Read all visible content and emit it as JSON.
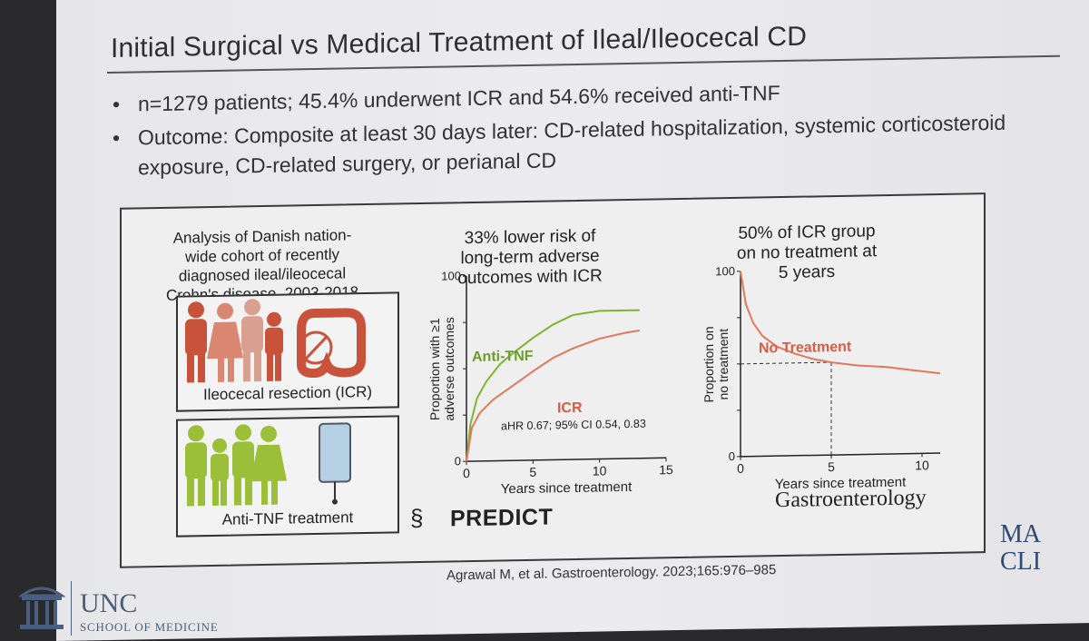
{
  "title": "Initial Surgical vs Medical Treatment of Ileal/Ileocecal CD",
  "bullets": [
    "n=1279 patients; 45.4% underwent ICR and 54.6% received anti-TNF",
    "Outcome: Composite at least 30 days later: CD-related hospitalization, systemic corticosteroid exposure, CD-related surgery, or perianal CD"
  ],
  "cohort_text": [
    "Analysis of Danish nation-",
    "wide cohort of recently",
    "diagnosed ileal/ileocecal",
    "Crohn's disease, 2003-2018"
  ],
  "icr_panel_label": "Ileocecal resection (ICR)",
  "antitnf_panel_label": "Anti-TNF treatment",
  "chart1_title": [
    "33% lower risk of",
    "long-term adverse",
    "outcomes with ICR"
  ],
  "chart2_title": [
    "50% of ICR group",
    "on no treatment at",
    "5 years"
  ],
  "predict_label": "PREDICT",
  "journal": "Gastroenterology",
  "citation": "Agrawal M, et al. Gastroenterology. 2023;165:976–985",
  "unc": {
    "name": "UNC",
    "sub": "SCHOOL OF MEDICINE"
  },
  "mayo": [
    "MA",
    "CLI"
  ],
  "colors": {
    "anti_tnf": "#7db52e",
    "icr": "#e0795a",
    "figure_red": "#d95b43"
  },
  "chart_data": [
    {
      "type": "line",
      "ylabel": "Proportion with ≥1 adverse outcomes",
      "xlabel": "Years since treatment",
      "x_ticks": [
        0,
        5,
        10,
        15
      ],
      "y_ticks": [
        0,
        100
      ],
      "xlim": [
        0,
        15
      ],
      "ylim": [
        0,
        100
      ],
      "annotation": "aHR 0.67; 95% CI 0.54, 0.83",
      "series": [
        {
          "name": "Anti-TNF",
          "color": "#7db52e",
          "x": [
            0,
            0.3,
            0.8,
            1.5,
            2.5,
            3.5,
            5,
            6.5,
            8,
            10,
            12,
            13
          ],
          "y": [
            0,
            20,
            34,
            43,
            52,
            58,
            66,
            73,
            78,
            80,
            80,
            80
          ]
        },
        {
          "name": "ICR",
          "color": "#e0795a",
          "x": [
            0,
            0.4,
            1,
            2,
            3,
            4,
            5,
            6.5,
            8,
            10,
            12,
            13
          ],
          "y": [
            0,
            18,
            26,
            33,
            38,
            43,
            48,
            55,
            60,
            65,
            68,
            69
          ]
        }
      ]
    },
    {
      "type": "line",
      "ylabel": "Proportion on no treatment",
      "xlabel": "Years since treatment",
      "x_ticks": [
        0,
        5,
        10
      ],
      "y_ticks": [
        0,
        100
      ],
      "xlim": [
        0,
        11
      ],
      "ylim": [
        0,
        100
      ],
      "series": [
        {
          "name": "No Treatment",
          "color": "#e0795a",
          "x": [
            0,
            0.3,
            0.7,
            1.2,
            2,
            3,
            4,
            5,
            6.5,
            8,
            9.5,
            11
          ],
          "y": [
            100,
            82,
            72,
            65,
            59,
            55,
            52,
            50,
            48,
            47,
            45,
            43
          ]
        }
      ],
      "reference": {
        "x": 5,
        "y": 50
      }
    }
  ]
}
